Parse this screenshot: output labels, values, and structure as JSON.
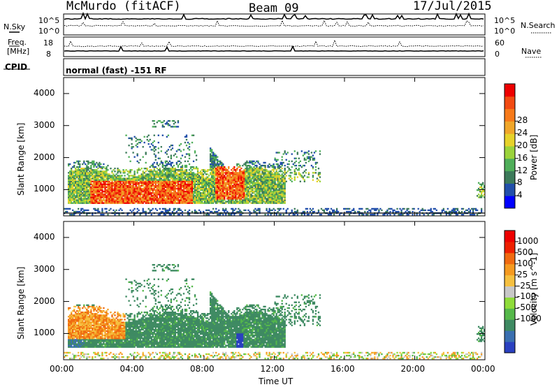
{
  "header": {
    "station": "McMurdo (fitACF)",
    "beam": "Beam 09",
    "date": "17/Jul/2015"
  },
  "param_panels": {
    "nsky_label": "N.Sky",
    "nsky_top": "10^5",
    "nsky_bottom": "10^0",
    "nsearch_label": "N.Search",
    "nsearch_top": "10^5",
    "nsearch_bottom": "10^0",
    "freq_label": "Freq.",
    "freq_unit": "[MHz]",
    "freq_top": "18",
    "freq_bottom": "8",
    "nave_label": "Nave",
    "nave_top": "60",
    "nave_bottom": "0",
    "cpid_label": "CPID",
    "cpid_text": "normal (fast) -151 RF"
  },
  "chart_data": [
    {
      "type": "heatmap",
      "title": "Power",
      "ylabel": "Slant Range [km]",
      "xlabel": "Time UT",
      "xlim": [
        "00:00",
        "24:00"
      ],
      "ylim": [
        180,
        4500
      ],
      "yticks": [
        1000,
        2000,
        3000,
        4000
      ],
      "xticks": [
        "00:00",
        "04:00",
        "08:00",
        "12:00",
        "16:00",
        "20:00",
        "00:00"
      ],
      "colorbar": {
        "label": "Power [dB]",
        "ticks": [
          "4",
          "8",
          "12",
          "16",
          "20",
          "24",
          "28"
        ],
        "colors": [
          "#0000ff",
          "#224faa",
          "#3c7a5a",
          "#4fae5a",
          "#9bd33b",
          "#e6d22a",
          "#f0a62a",
          "#f77a1a",
          "#f24a12",
          "#ee0000"
        ]
      },
      "features": [
        {
          "t_start": "00:20",
          "t_end": "14:30",
          "range_km": [
            500,
            1700
          ],
          "value_db": "8-28"
        },
        {
          "t_start": "08:30",
          "t_end": "10:30",
          "range_km": [
            600,
            2500
          ],
          "value_db": "12-28"
        }
      ]
    },
    {
      "type": "heatmap",
      "title": "Velocity",
      "ylabel": "Slant Range [km]",
      "xlabel": "Time UT",
      "xlim": [
        "00:00",
        "24:00"
      ],
      "ylim": [
        180,
        4500
      ],
      "yticks": [
        1000,
        2000,
        3000,
        4000
      ],
      "xticks": [
        "00:00",
        "04:00",
        "08:00",
        "12:00",
        "16:00",
        "20:00",
        "00:00"
      ],
      "colorbar": {
        "label": "Velocity [m s^-1]",
        "ticks": [
          "1000",
          "500",
          "100",
          "25",
          "-25",
          "-100",
          "-500",
          "-1000"
        ],
        "colors": [
          "#2a40c0",
          "#3a6fb0",
          "#3e8a62",
          "#55b84a",
          "#8fdc3a",
          "#c8c8c8",
          "#f5c040",
          "#f59a20",
          "#f06a10",
          "#ee2000",
          "#ee0000"
        ]
      },
      "features": [
        {
          "t_start": "00:20",
          "t_end": "14:30",
          "range_km": [
            500,
            1700
          ],
          "value": "mostly 25-100"
        },
        {
          "t_start": "01:00",
          "t_end": "03:30",
          "range_km": [
            800,
            1800
          ],
          "value": "-100 to -500"
        }
      ]
    }
  ]
}
